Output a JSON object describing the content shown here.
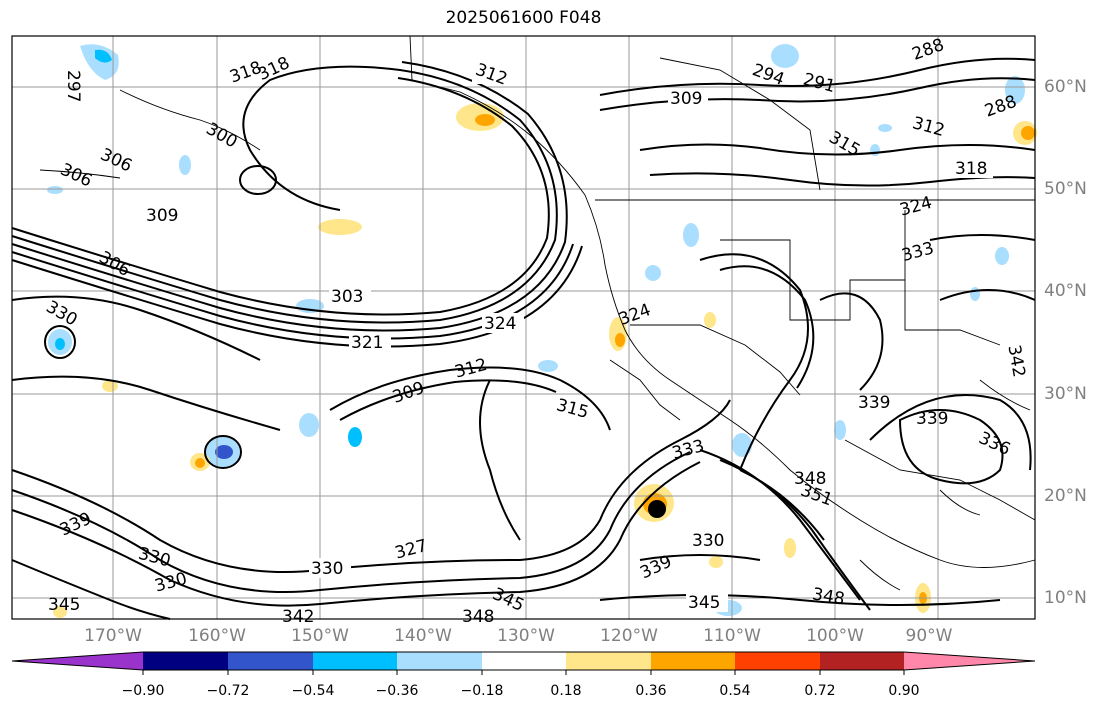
{
  "title": "2025061600 F048",
  "map": {
    "lat_labels": [
      "60°N",
      "50°N",
      "40°N",
      "30°N",
      "20°N",
      "10°N"
    ],
    "lon_labels": [
      "170°W",
      "160°W",
      "150°W",
      "140°W",
      "130°W",
      "120°W",
      "110°W",
      "100°W",
      "90°W"
    ],
    "contour_labels": [
      "312",
      "309",
      "294",
      "291",
      "288",
      "318",
      "306",
      "303",
      "324",
      "321",
      "327",
      "330",
      "333",
      "336",
      "339",
      "342",
      "345",
      "348",
      "351",
      "315",
      "300",
      "297"
    ],
    "marker": "storm-center"
  },
  "colorbar": {
    "ticks": [
      "−0.90",
      "−0.72",
      "−0.54",
      "−0.36",
      "−0.18",
      "0.18",
      "0.36",
      "0.54",
      "0.72",
      "0.90"
    ],
    "colors": [
      "#9933cc",
      "#000080",
      "#3355cc",
      "#00bfff",
      "#aadeff",
      "#ffffff",
      "#ffe68a",
      "#ffa500",
      "#ff4000",
      "#b22222",
      "#ff88aa"
    ]
  }
}
